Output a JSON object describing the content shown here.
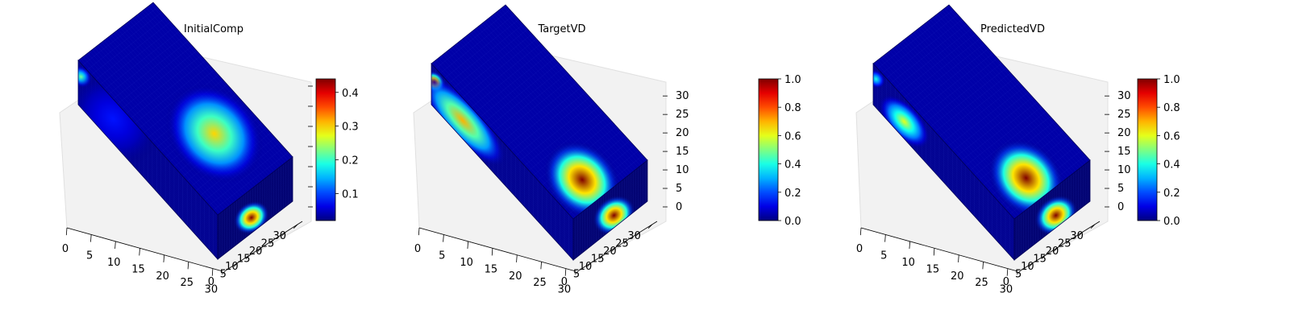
{
  "chart_data": [
    {
      "type": "heatmap",
      "subtype": "3d-voxel-volume",
      "title": "InitialComp",
      "axis_ticks": {
        "x": [
          0,
          5,
          10,
          15,
          20,
          25,
          30
        ],
        "y": [
          0,
          5,
          10,
          15,
          20,
          25,
          30
        ],
        "z": []
      },
      "axis_ranges": {
        "x": [
          0,
          32
        ],
        "y": [
          0,
          32
        ],
        "z": [
          0,
          32
        ]
      },
      "colormap": "jet",
      "colorbar": {
        "range": [
          0.02,
          0.44
        ],
        "ticks": [
          0.1,
          0.2,
          0.3,
          0.4
        ],
        "tick_labels": [
          "0.1",
          "0.2",
          "0.3",
          "0.4"
        ]
      },
      "hotspots": [
        {
          "face": "top",
          "u": 0.68,
          "v": 0.55,
          "r": 0.26,
          "value": 0.3
        },
        {
          "face": "right",
          "u": 0.45,
          "v": 0.35,
          "r": 0.2,
          "value": 0.44
        },
        {
          "face": "front",
          "u": 0.02,
          "v": 0.7,
          "r": 0.06,
          "value": 0.22
        },
        {
          "face": "front",
          "u": 0.25,
          "v": 0.55,
          "r": 0.25,
          "value": 0.08
        }
      ]
    },
    {
      "type": "heatmap",
      "subtype": "3d-voxel-volume",
      "title": "TargetVD",
      "axis_ticks": {
        "x": [
          0,
          5,
          10,
          15,
          20,
          25,
          30
        ],
        "y": [
          0,
          5,
          10,
          15,
          20,
          25,
          30
        ],
        "z": [
          0,
          5,
          10,
          15,
          20,
          25,
          30
        ]
      },
      "axis_ranges": {
        "x": [
          0,
          32
        ],
        "y": [
          0,
          32
        ],
        "z": [
          0,
          32
        ]
      },
      "colormap": "jet",
      "colorbar": {
        "range": [
          0.0,
          1.0
        ],
        "ticks": [
          0.0,
          0.2,
          0.4,
          0.6,
          0.8,
          1.0
        ],
        "tick_labels": [
          "0.0",
          "0.2",
          "0.4",
          "0.6",
          "0.8",
          "1.0"
        ]
      },
      "hotspots": [
        {
          "face": "top",
          "u": 0.88,
          "v": 0.35,
          "r": 0.2,
          "value": 1.0
        },
        {
          "face": "right",
          "u": 0.55,
          "v": 0.3,
          "r": 0.24,
          "value": 1.0
        },
        {
          "face": "front",
          "u": 0.02,
          "v": 0.62,
          "r": 0.06,
          "value": 1.0
        },
        {
          "face": "front",
          "u": 0.22,
          "v": 0.45,
          "r": 0.12,
          "value": 0.7,
          "stretch": 2.4
        }
      ]
    },
    {
      "type": "heatmap",
      "subtype": "3d-voxel-volume",
      "title": "PredictedVD",
      "axis_ticks": {
        "x": [
          0,
          5,
          10,
          15,
          20,
          25,
          30
        ],
        "y": [
          0,
          5,
          10,
          15,
          20,
          25,
          30
        ],
        "z": [
          0,
          5,
          10,
          15,
          20,
          25,
          30
        ]
      },
      "axis_ranges": {
        "x": [
          0,
          32
        ],
        "y": [
          0,
          32
        ],
        "z": [
          0,
          32
        ]
      },
      "colormap": "jet",
      "colorbar": {
        "range": [
          0.0,
          1.0
        ],
        "ticks": [
          0.0,
          0.2,
          0.4,
          0.6,
          0.8,
          1.0
        ],
        "tick_labels": [
          "0.0",
          "0.2",
          "0.4",
          "0.6",
          "0.8",
          "1.0"
        ]
      },
      "hotspots": [
        {
          "face": "top",
          "u": 0.88,
          "v": 0.38,
          "r": 0.2,
          "value": 1.0
        },
        {
          "face": "right",
          "u": 0.55,
          "v": 0.3,
          "r": 0.24,
          "value": 1.0
        },
        {
          "face": "front",
          "u": 0.02,
          "v": 0.7,
          "r": 0.05,
          "value": 0.4
        },
        {
          "face": "front",
          "u": 0.22,
          "v": 0.42,
          "r": 0.1,
          "value": 0.6,
          "stretch": 1.6
        }
      ]
    }
  ]
}
